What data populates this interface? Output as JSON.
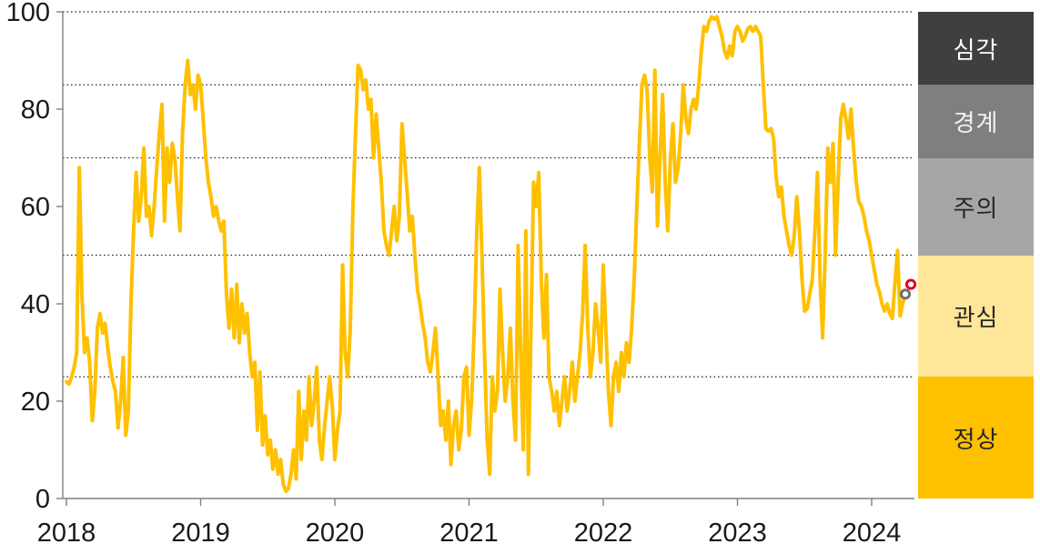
{
  "chart_data": {
    "type": "line",
    "title": "",
    "xlabel": "",
    "ylabel": "",
    "ylim": [
      0,
      100
    ],
    "grid": "dotted horizontal threshold lines",
    "y_ticks": [
      0,
      20,
      40,
      60,
      80,
      100
    ],
    "x_tick_labels": [
      "2018",
      "2019",
      "2020",
      "2021",
      "2022",
      "2023",
      "2024"
    ],
    "threshold_lines": [
      25,
      50,
      70,
      85,
      100
    ],
    "start_year": 2018,
    "points_per_year": 52,
    "line_color": "#FFC000",
    "axis_color": "#808080",
    "label_color": "#1a1a1a",
    "series": [
      {
        "name": "stress-index",
        "color": "#FFC000",
        "values": [
          24,
          23.5,
          25,
          27,
          30,
          68,
          42,
          30,
          33,
          28,
          16,
          22,
          35,
          38,
          34,
          36,
          31,
          27,
          24,
          22,
          14.5,
          20,
          29,
          13,
          18,
          40,
          55,
          67,
          57,
          62,
          72,
          58,
          60,
          54,
          60,
          68,
          75,
          81,
          57,
          72,
          65,
          73,
          70,
          62,
          55,
          75,
          85,
          90,
          83,
          85,
          80,
          87,
          85,
          78,
          70,
          65,
          62,
          58,
          60,
          57,
          55,
          57,
          42,
          35,
          43,
          33,
          44,
          32,
          40,
          34,
          38,
          30,
          25,
          28,
          14,
          26,
          11,
          17,
          9,
          12,
          6,
          10,
          5,
          8,
          3,
          1.5,
          2,
          5,
          10,
          4,
          22,
          8,
          18,
          12,
          25,
          15,
          20,
          27,
          12,
          8,
          15,
          20,
          25,
          19,
          8,
          14,
          18,
          48,
          30,
          25,
          35,
          60,
          75,
          89,
          88,
          84,
          86,
          80,
          82,
          70,
          79,
          72,
          65,
          55,
          52,
          50,
          55,
          60,
          53,
          58,
          77,
          70,
          63,
          55,
          58,
          50,
          43,
          40,
          36,
          33,
          28,
          26,
          30,
          35,
          25,
          15,
          18,
          12,
          20,
          7,
          15,
          18,
          10,
          14,
          25,
          27,
          13,
          20,
          35,
          55,
          68,
          50,
          30,
          12,
          5,
          25,
          18,
          22,
          43,
          30,
          20,
          25,
          35,
          20,
          12,
          52,
          30,
          10,
          55,
          5,
          35,
          65,
          60,
          67,
          45,
          33,
          46,
          25,
          22,
          18,
          22,
          15,
          20,
          25,
          18,
          22,
          28,
          20,
          25,
          30,
          38,
          52,
          35,
          25,
          30,
          40,
          35,
          28,
          48,
          35,
          22,
          15,
          25,
          28,
          22,
          30,
          25,
          32,
          28,
          35,
          45,
          60,
          73,
          85,
          87,
          84,
          70,
          63,
          88,
          56,
          70,
          83,
          65,
          55,
          70,
          77,
          65,
          68,
          75,
          85,
          78,
          75,
          80,
          82,
          80,
          85,
          92,
          97,
          96,
          98,
          99,
          98.5,
          99,
          97,
          95,
          92,
          90.5,
          93,
          91,
          96,
          97,
          96,
          94,
          95,
          96.5,
          97,
          96,
          97,
          96,
          95,
          85,
          76,
          75.5,
          76,
          74,
          66,
          62,
          64,
          58,
          55,
          52,
          50,
          54,
          62,
          55,
          45,
          38.5,
          39,
          42,
          45,
          55,
          67,
          45,
          33,
          50,
          72,
          65,
          73,
          50,
          65,
          78,
          81,
          78,
          74,
          80,
          72,
          65,
          61,
          60,
          58,
          55,
          53,
          50,
          47,
          44,
          42.5,
          40,
          38.5,
          40,
          38,
          37,
          44,
          51,
          37.5,
          40,
          42
        ]
      }
    ],
    "end_markers": [
      {
        "name": "previous-point",
        "shape": "open-circle",
        "color": "#6F6F6F",
        "x_year": 6.251,
        "value": 42
      },
      {
        "name": "latest-point",
        "shape": "open-circle",
        "color": "#E4001C",
        "x_year": 6.292,
        "value": 44
      }
    ],
    "legend_bands": [
      {
        "label": "심각",
        "range": [
          85,
          100
        ],
        "bg": "#3F3F3F",
        "text_color": "#FFFFFF"
      },
      {
        "label": "경계",
        "range": [
          70,
          85
        ],
        "bg": "#7F7F7F",
        "text_color": "#F2F2F2"
      },
      {
        "label": "주의",
        "range": [
          50,
          70
        ],
        "bg": "#A6A6A6",
        "text_color": "#262626"
      },
      {
        "label": "관심",
        "range": [
          25,
          50
        ],
        "bg": "#FFE699",
        "text_color": "#262626"
      },
      {
        "label": "정상",
        "range": [
          0,
          25
        ],
        "bg": "#FFC000",
        "text_color": "#262626"
      }
    ]
  }
}
